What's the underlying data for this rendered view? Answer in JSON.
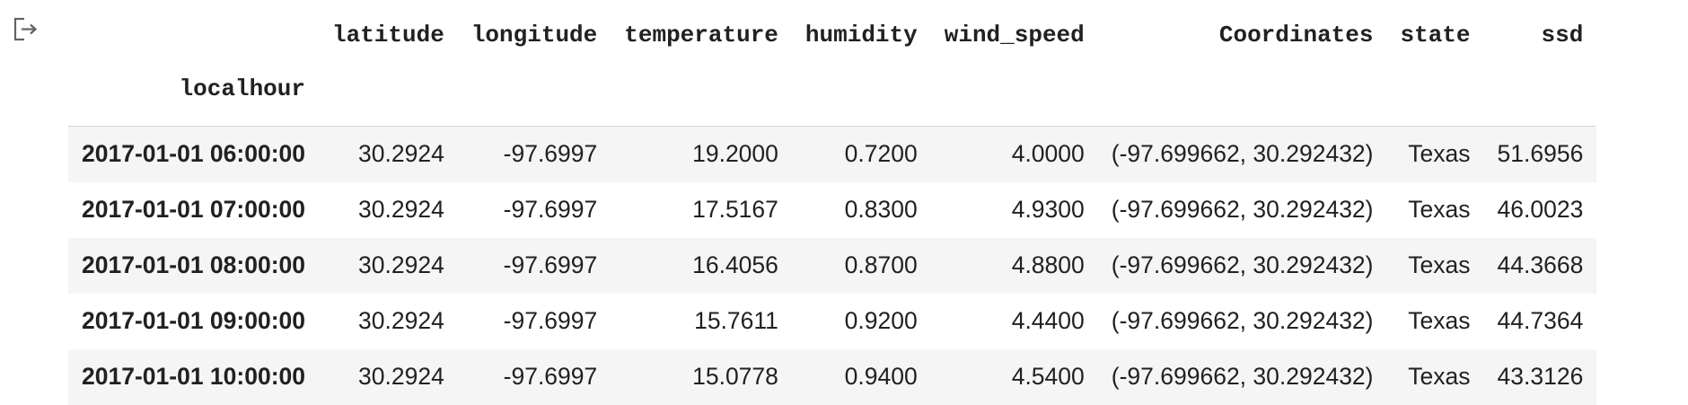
{
  "output_icon": "output-redirect-icon",
  "dataframe": {
    "index_name": "localhour",
    "columns": [
      "latitude",
      "longitude",
      "temperature",
      "humidity",
      "wind_speed",
      "Coordinates",
      "state",
      "ssd"
    ],
    "rows": [
      {
        "index": "2017-01-01 06:00:00",
        "cells": [
          "30.2924",
          "-97.6997",
          "19.2000",
          "0.7200",
          "4.0000",
          "(-97.699662, 30.292432)",
          "Texas",
          "51.6956"
        ]
      },
      {
        "index": "2017-01-01 07:00:00",
        "cells": [
          "30.2924",
          "-97.6997",
          "17.5167",
          "0.8300",
          "4.9300",
          "(-97.699662, 30.292432)",
          "Texas",
          "46.0023"
        ]
      },
      {
        "index": "2017-01-01 08:00:00",
        "cells": [
          "30.2924",
          "-97.6997",
          "16.4056",
          "0.8700",
          "4.8800",
          "(-97.699662, 30.292432)",
          "Texas",
          "44.3668"
        ]
      },
      {
        "index": "2017-01-01 09:00:00",
        "cells": [
          "30.2924",
          "-97.6997",
          "15.7611",
          "0.9200",
          "4.4400",
          "(-97.699662, 30.292432)",
          "Texas",
          "44.7364"
        ]
      },
      {
        "index": "2017-01-01 10:00:00",
        "cells": [
          "30.2924",
          "-97.6997",
          "15.0778",
          "0.9400",
          "4.5400",
          "(-97.699662, 30.292432)",
          "Texas",
          "43.3126"
        ]
      }
    ]
  }
}
